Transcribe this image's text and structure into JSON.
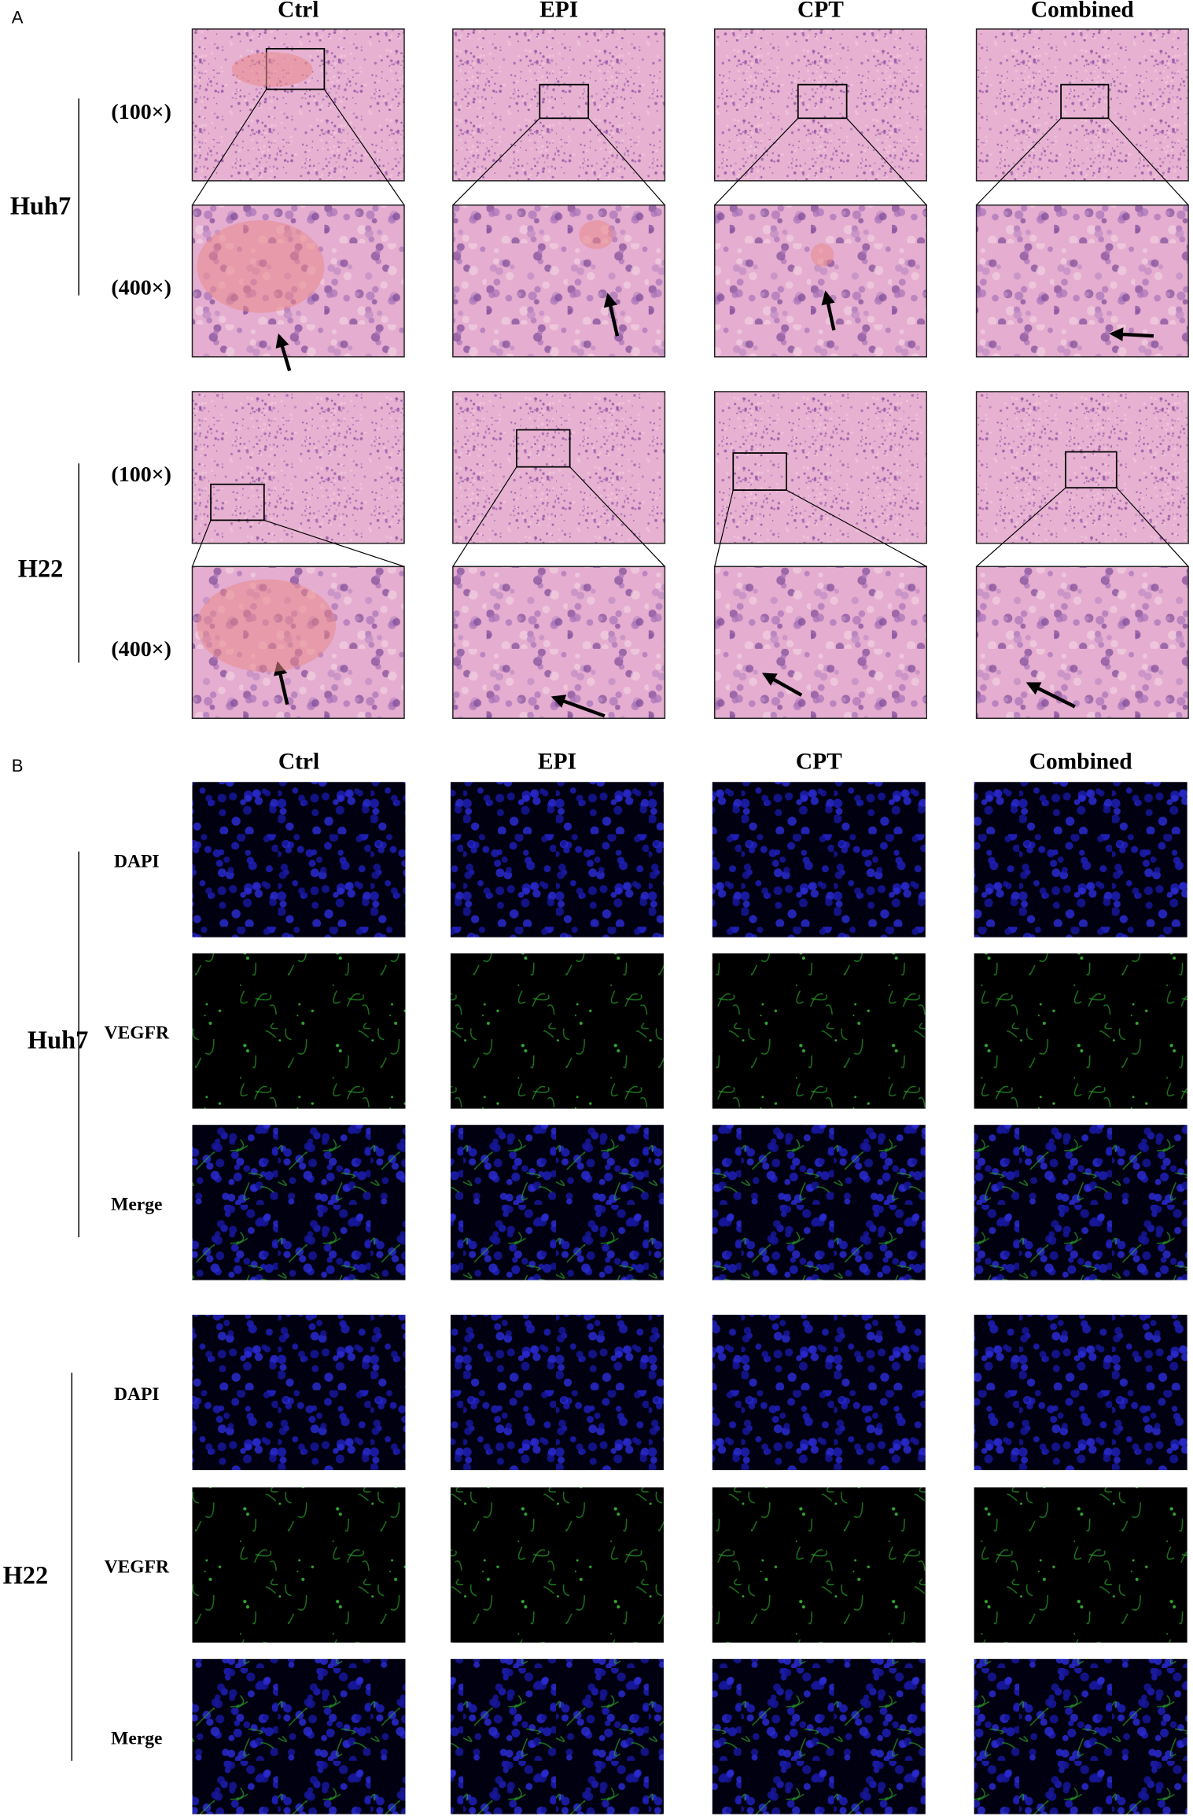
{
  "panel_a": {
    "label": "A",
    "columns": [
      "Ctrl",
      "EPI",
      "CPT",
      "Combined"
    ],
    "groups": [
      {
        "name": "Huh7",
        "rows": [
          "(100×)",
          "(400×)"
        ]
      },
      {
        "name": "H22",
        "rows": [
          "(100×)",
          "(400×)"
        ]
      }
    ]
  },
  "panel_b": {
    "label": "B",
    "columns": [
      "Ctrl",
      "EPI",
      "CPT",
      "Combined"
    ],
    "groups": [
      {
        "name": "Huh7",
        "rows": [
          "DAPI",
          "VEGFR",
          "Merge"
        ]
      },
      {
        "name": "H22",
        "rows": [
          "DAPI",
          "VEGFR",
          "Merge"
        ]
      }
    ]
  }
}
